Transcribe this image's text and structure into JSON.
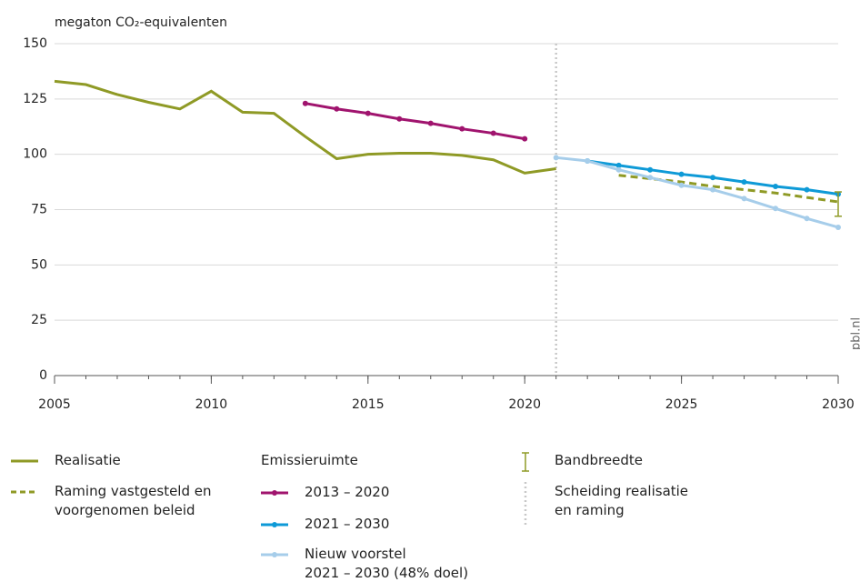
{
  "chart_data": {
    "type": "line",
    "y_axis_label": "megaton CO₂-equivalenten",
    "watermark": "pbl.nl",
    "x": [
      2005,
      2006,
      2007,
      2008,
      2009,
      2010,
      2011,
      2012,
      2013,
      2014,
      2015,
      2016,
      2017,
      2018,
      2019,
      2020,
      2021,
      2022,
      2023,
      2024,
      2025,
      2026,
      2027,
      2028,
      2029,
      2030
    ],
    "xlim": [
      2005,
      2030
    ],
    "xticks": [
      2005,
      2010,
      2015,
      2020,
      2025,
      2030
    ],
    "xminorticks": [
      2005,
      2006,
      2007,
      2008,
      2009,
      2010,
      2011,
      2012,
      2013,
      2014,
      2015,
      2016,
      2017,
      2018,
      2019,
      2020,
      2021,
      2022,
      2023,
      2024,
      2025,
      2026,
      2027,
      2028,
      2029,
      2030
    ],
    "ylim": [
      0,
      150
    ],
    "yticks": [
      0,
      25,
      50,
      75,
      100,
      125,
      150
    ],
    "grid": true,
    "legend_group": "Emissieruimte",
    "series": [
      {
        "name": "Realisatie",
        "color": "#8f9a26",
        "dashed": false,
        "markers": false,
        "values": [
          133,
          131.5,
          127,
          123.5,
          120.5,
          128.5,
          119,
          118.5,
          108,
          98,
          100,
          100.5,
          100.5,
          99.5,
          97.5,
          91.5,
          93.5,
          null,
          null,
          null,
          null,
          null,
          null,
          null,
          null,
          null
        ]
      },
      {
        "name": "Raming vastgesteld en voorgenomen beleid",
        "color": "#8f9a26",
        "dashed": true,
        "markers": false,
        "values": [
          null,
          null,
          null,
          null,
          null,
          null,
          null,
          null,
          null,
          null,
          null,
          null,
          null,
          null,
          null,
          null,
          null,
          null,
          90.5,
          89,
          87.5,
          85.5,
          84,
          82.5,
          80.5,
          78.5
        ]
      },
      {
        "name": "2013 – 2020",
        "color": "#a0146e",
        "dashed": false,
        "markers": true,
        "values": [
          null,
          null,
          null,
          null,
          null,
          null,
          null,
          null,
          123,
          120.5,
          118.5,
          116,
          114,
          111.5,
          109.5,
          107,
          null,
          null,
          null,
          null,
          null,
          null,
          null,
          null,
          null,
          null
        ]
      },
      {
        "name": "2021 – 2030",
        "color": "#0e9ad7",
        "dashed": false,
        "markers": true,
        "values": [
          null,
          null,
          null,
          null,
          null,
          null,
          null,
          null,
          null,
          null,
          null,
          null,
          null,
          null,
          null,
          null,
          null,
          97,
          95,
          93,
          91,
          89.5,
          87.5,
          85.5,
          84,
          82
        ]
      },
      {
        "name": "Nieuw voorstel\n2021 – 2030 (48% doel)",
        "color": "#a6cdea",
        "dashed": false,
        "markers": true,
        "values": [
          null,
          null,
          null,
          null,
          null,
          null,
          null,
          null,
          null,
          null,
          null,
          null,
          null,
          null,
          null,
          null,
          98.5,
          97,
          93,
          89.5,
          86,
          84,
          80,
          75.5,
          71,
          67
        ]
      }
    ],
    "band": {
      "name": "Bandbreedte",
      "color": "#8f9a26",
      "x": 2030,
      "low": 72,
      "high": 83
    },
    "divider": {
      "name": "Scheiding realisatie\nen raming",
      "color": "#c8c8c8",
      "x": 2021
    }
  }
}
